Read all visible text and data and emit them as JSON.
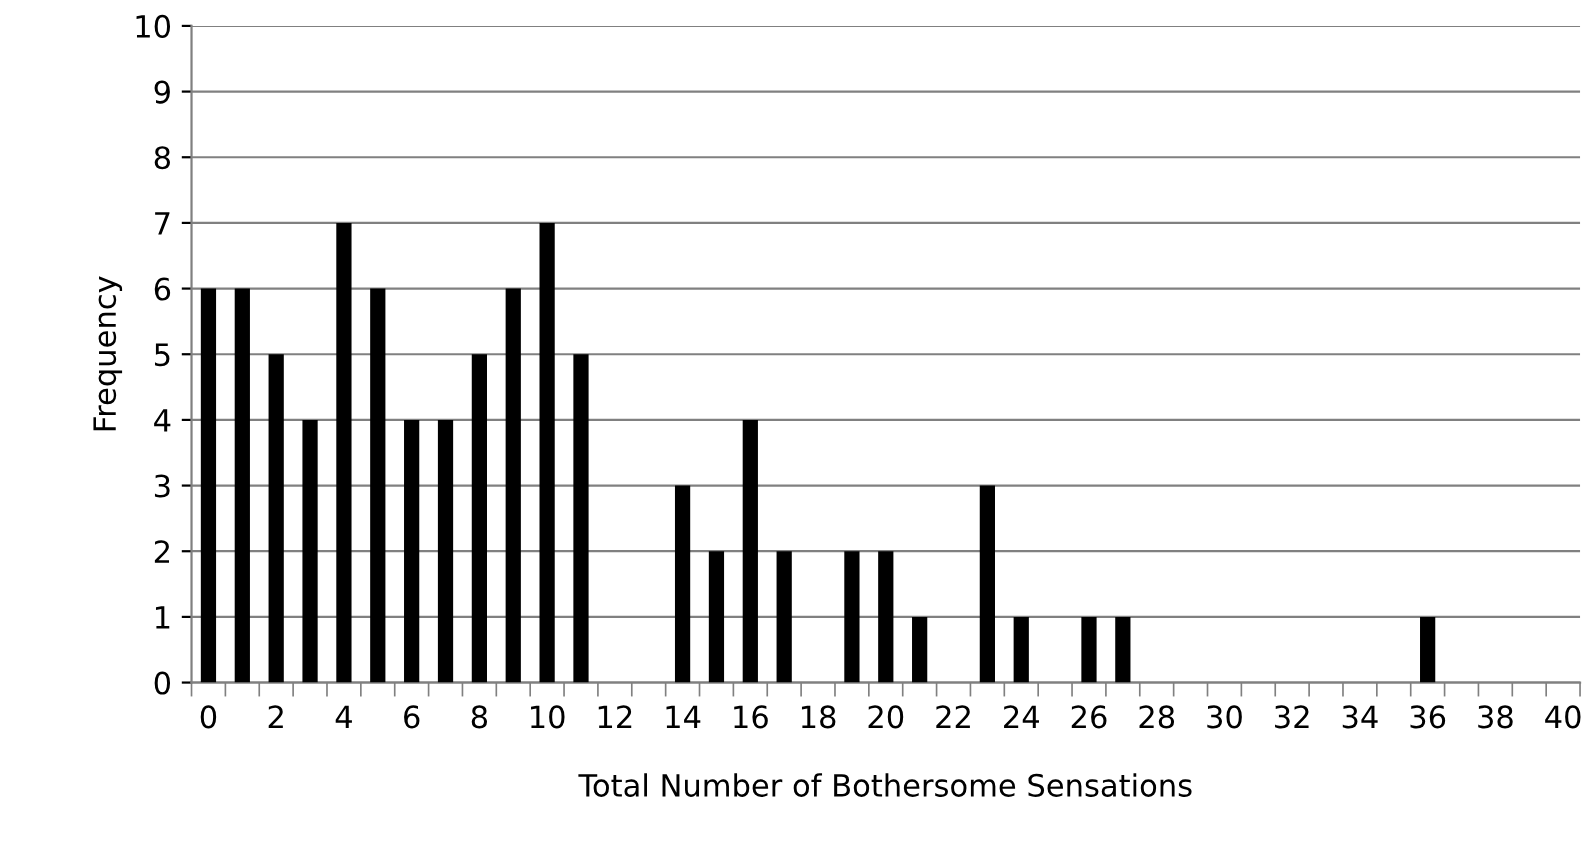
{
  "chart_data": {
    "type": "bar",
    "xlabel": "Total Number of Bothersome Sensations",
    "ylabel": "Frequency",
    "categories": [
      "0",
      null,
      "2",
      null,
      "4",
      null,
      "6",
      null,
      "8",
      null,
      "10",
      null,
      "12",
      null,
      "14",
      null,
      "16",
      null,
      "18",
      null,
      "20",
      null,
      "22",
      null,
      "24",
      null,
      "26",
      null,
      "28",
      null,
      "30",
      null,
      "32",
      null,
      "34",
      null,
      "36",
      null,
      "38",
      null,
      "40"
    ],
    "values": [
      6,
      6,
      5,
      4,
      7,
      6,
      4,
      4,
      5,
      6,
      7,
      5,
      0,
      0,
      3,
      2,
      4,
      2,
      0,
      2,
      2,
      1,
      0,
      3,
      1,
      0,
      1,
      1,
      0,
      0,
      0,
      0,
      0,
      0,
      0,
      0,
      1,
      0,
      0,
      0,
      0
    ],
    "color": "#000000",
    "ylim": [
      0,
      10
    ],
    "yticks": [
      0,
      1,
      2,
      3,
      4,
      5,
      6,
      7,
      8,
      9,
      10
    ],
    "grid": "y",
    "legend": false
  }
}
